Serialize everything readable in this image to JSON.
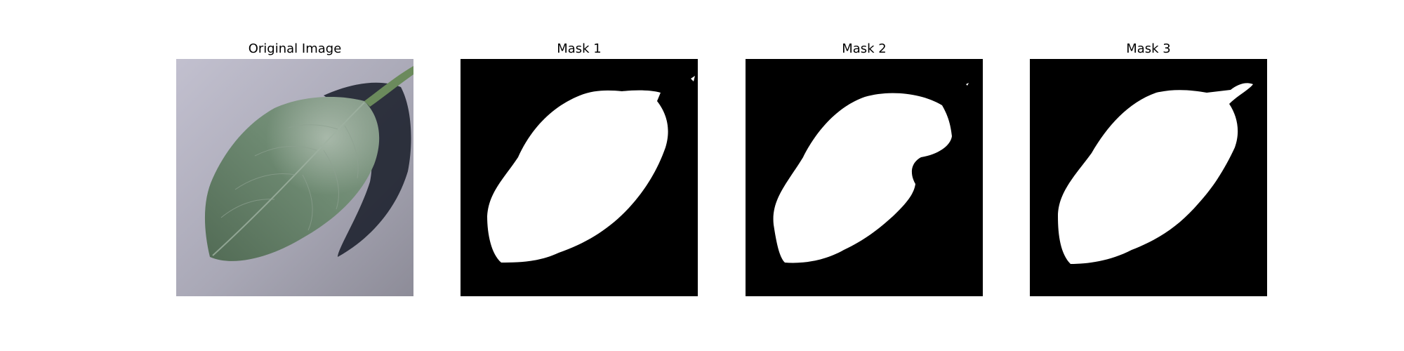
{
  "panels": [
    {
      "title": "Original Image",
      "kind": "photo"
    },
    {
      "title": "Mask 1",
      "kind": "mask"
    },
    {
      "title": "Mask 2",
      "kind": "mask"
    },
    {
      "title": "Mask 3",
      "kind": "mask"
    }
  ],
  "colors": {
    "background": "#ffffff",
    "mask_background": "#000000",
    "mask_foreground": "#ffffff",
    "leaf_green": "#5f7a62",
    "surface_gray": "#a7a7b2",
    "shadow": "#1f2430"
  }
}
